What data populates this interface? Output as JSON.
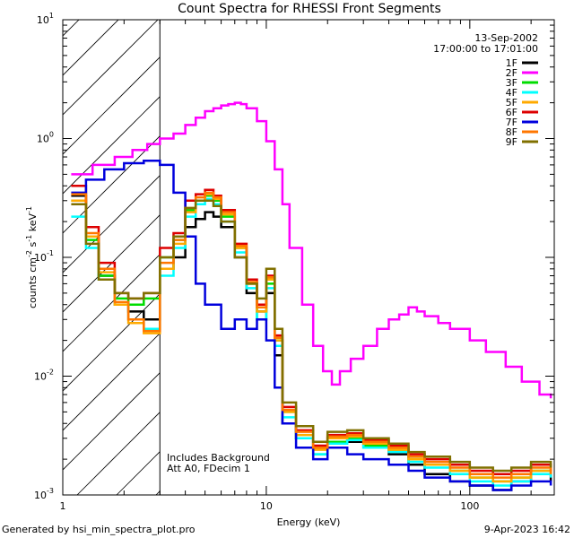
{
  "chart_data": {
    "type": "line",
    "title": "Count Spectra for RHESSI Front Segments",
    "xlabel": "Energy (keV)",
    "ylabel_parts": [
      "counts cm",
      "-2",
      " s",
      "-1",
      " keV",
      "-1"
    ],
    "xscale": "log",
    "yscale": "log",
    "xlim": [
      1,
      260
    ],
    "ylim": [
      0.001,
      10
    ],
    "x_ticks": [
      {
        "value": 1,
        "label": "1"
      },
      {
        "value": 10,
        "label": "10"
      },
      {
        "value": 100,
        "label": "100"
      }
    ],
    "y_ticks": [
      {
        "value": 0.001,
        "base": "10",
        "exp": "-3"
      },
      {
        "value": 0.01,
        "base": "10",
        "exp": "-2"
      },
      {
        "value": 0.1,
        "base": "10",
        "exp": "-1"
      },
      {
        "value": 1,
        "base": "10",
        "exp": "0"
      },
      {
        "value": 10,
        "base": "10",
        "exp": "1"
      }
    ],
    "hatched_region": {
      "x_from": 1,
      "x_to": 3
    },
    "date": "13-Sep-2002",
    "time_range": "17:00:00 to 17:01:00",
    "annotation_lines": [
      "Includes Background",
      "Att A0, FDecim 1"
    ],
    "series": [
      {
        "name": "1F",
        "color": "#000000",
        "x": [
          1.1,
          1.3,
          1.5,
          1.8,
          2.1,
          2.5,
          3.0,
          3.5,
          4.0,
          4.5,
          5.0,
          5.5,
          6.0,
          7.0,
          8.0,
          9.0,
          10.0,
          11.0,
          12.0,
          14.0,
          17.0,
          20.0,
          25.0,
          30.0,
          40.0,
          50.0,
          60.0,
          80.0,
          100.0,
          130.0,
          160.0,
          200.0,
          250.0
        ],
        "y": [
          0.33,
          0.15,
          0.07,
          0.04,
          0.035,
          0.03,
          0.08,
          0.1,
          0.18,
          0.21,
          0.24,
          0.22,
          0.18,
          0.1,
          0.05,
          0.035,
          0.05,
          0.015,
          0.004,
          0.003,
          0.0025,
          0.003,
          0.0028,
          0.0025,
          0.0022,
          0.0018,
          0.0015,
          0.0013,
          0.0012,
          0.0011,
          0.0013,
          0.0015,
          0.0013
        ]
      },
      {
        "name": "2F",
        "color": "#ff00ff",
        "x": [
          1.1,
          1.4,
          1.8,
          2.2,
          2.6,
          3.0,
          3.5,
          4.0,
          4.5,
          5.0,
          5.5,
          6.0,
          6.5,
          7.0,
          7.5,
          8.0,
          9.0,
          10.0,
          11.0,
          12.0,
          13.0,
          15.0,
          17.0,
          19.0,
          21.0,
          23.0,
          26.0,
          30.0,
          35.0,
          40.0,
          45.0,
          50.0,
          55.0,
          60.0,
          70.0,
          80.0,
          100.0,
          120.0,
          150.0,
          180.0,
          220.0,
          250.0
        ],
        "y": [
          0.5,
          0.6,
          0.7,
          0.8,
          0.9,
          1.0,
          1.1,
          1.3,
          1.5,
          1.7,
          1.8,
          1.9,
          1.95,
          2.0,
          1.95,
          1.8,
          1.4,
          0.95,
          0.55,
          0.28,
          0.12,
          0.04,
          0.018,
          0.011,
          0.0085,
          0.011,
          0.014,
          0.018,
          0.025,
          0.03,
          0.033,
          0.038,
          0.035,
          0.032,
          0.028,
          0.025,
          0.02,
          0.016,
          0.012,
          0.009,
          0.007,
          0.0065
        ]
      },
      {
        "name": "3F",
        "color": "#00dd00",
        "x": [
          1.1,
          1.3,
          1.5,
          1.8,
          2.1,
          2.5,
          3.0,
          3.5,
          4.0,
          4.5,
          5.0,
          5.5,
          6.0,
          7.0,
          8.0,
          9.0,
          10.0,
          11.0,
          12.0,
          14.0,
          17.0,
          20.0,
          25.0,
          30.0,
          40.0,
          50.0,
          60.0,
          80.0,
          100.0,
          130.0,
          160.0,
          200.0,
          250.0
        ],
        "y": [
          0.3,
          0.14,
          0.07,
          0.045,
          0.04,
          0.045,
          0.1,
          0.14,
          0.25,
          0.3,
          0.33,
          0.3,
          0.22,
          0.12,
          0.06,
          0.03,
          0.06,
          0.02,
          0.005,
          0.003,
          0.0022,
          0.0028,
          0.003,
          0.0026,
          0.0024,
          0.002,
          0.0018,
          0.0016,
          0.0014,
          0.0013,
          0.0014,
          0.0016,
          0.0015
        ]
      },
      {
        "name": "4F",
        "color": "#00ffff",
        "x": [
          1.1,
          1.3,
          1.5,
          1.8,
          2.1,
          2.5,
          3.0,
          3.5,
          4.0,
          4.5,
          5.0,
          5.5,
          6.0,
          7.0,
          8.0,
          9.0,
          10.0,
          11.0,
          12.0,
          14.0,
          17.0,
          20.0,
          25.0,
          30.0,
          40.0,
          50.0,
          60.0,
          80.0,
          100.0,
          130.0,
          160.0,
          200.0,
          250.0
        ],
        "y": [
          0.22,
          0.12,
          0.065,
          0.04,
          0.03,
          0.025,
          0.07,
          0.12,
          0.22,
          0.28,
          0.31,
          0.28,
          0.2,
          0.11,
          0.055,
          0.03,
          0.055,
          0.018,
          0.0045,
          0.003,
          0.0022,
          0.0027,
          0.0029,
          0.0025,
          0.0023,
          0.0019,
          0.0017,
          0.0015,
          0.0013,
          0.0012,
          0.0013,
          0.0015,
          0.0014
        ]
      },
      {
        "name": "5F",
        "color": "#ffaa00",
        "x": [
          1.1,
          1.3,
          1.5,
          1.8,
          2.1,
          2.5,
          3.0,
          3.5,
          4.0,
          4.5,
          5.0,
          5.5,
          6.0,
          7.0,
          8.0,
          9.0,
          10.0,
          11.0,
          12.0,
          14.0,
          17.0,
          20.0,
          25.0,
          30.0,
          40.0,
          50.0,
          60.0,
          80.0,
          100.0,
          130.0,
          160.0,
          200.0,
          250.0
        ],
        "y": [
          0.3,
          0.15,
          0.075,
          0.04,
          0.028,
          0.023,
          0.08,
          0.13,
          0.24,
          0.3,
          0.34,
          0.31,
          0.23,
          0.12,
          0.06,
          0.035,
          0.065,
          0.02,
          0.005,
          0.0032,
          0.0024,
          0.003,
          0.0031,
          0.0027,
          0.0024,
          0.002,
          0.0018,
          0.0016,
          0.0014,
          0.0013,
          0.0014,
          0.0016,
          0.0015
        ]
      },
      {
        "name": "6F",
        "color": "#dd0000",
        "x": [
          1.1,
          1.3,
          1.5,
          1.8,
          2.1,
          2.5,
          3.0,
          3.5,
          4.0,
          4.5,
          5.0,
          5.5,
          6.0,
          7.0,
          8.0,
          9.0,
          10.0,
          11.0,
          12.0,
          14.0,
          17.0,
          20.0,
          25.0,
          30.0,
          40.0,
          50.0,
          60.0,
          80.0,
          100.0,
          130.0,
          160.0,
          200.0,
          250.0
        ],
        "y": [
          0.4,
          0.18,
          0.09,
          0.05,
          0.045,
          0.05,
          0.12,
          0.16,
          0.3,
          0.34,
          0.37,
          0.33,
          0.25,
          0.13,
          0.065,
          0.04,
          0.07,
          0.022,
          0.0055,
          0.0035,
          0.0026,
          0.0032,
          0.0033,
          0.0029,
          0.0026,
          0.0022,
          0.002,
          0.0018,
          0.0016,
          0.0015,
          0.0016,
          0.0018,
          0.0016
        ]
      },
      {
        "name": "7F",
        "color": "#0000dd",
        "x": [
          1.1,
          1.3,
          1.6,
          2.0,
          2.5,
          3.0,
          3.5,
          4.0,
          4.5,
          5.0,
          6.0,
          7.0,
          8.0,
          9.0,
          10.0,
          11.0,
          12.0,
          14.0,
          17.0,
          20.0,
          25.0,
          30.0,
          40.0,
          50.0,
          60.0,
          80.0,
          100.0,
          130.0,
          160.0,
          200.0,
          250.0
        ],
        "y": [
          0.35,
          0.45,
          0.55,
          0.62,
          0.65,
          0.6,
          0.35,
          0.15,
          0.06,
          0.04,
          0.025,
          0.03,
          0.025,
          0.03,
          0.02,
          0.008,
          0.004,
          0.0025,
          0.002,
          0.0025,
          0.0022,
          0.002,
          0.0018,
          0.0016,
          0.0014,
          0.0013,
          0.0012,
          0.0011,
          0.0012,
          0.0013,
          0.0012
        ]
      },
      {
        "name": "8F",
        "color": "#ff7700",
        "x": [
          1.1,
          1.3,
          1.5,
          1.8,
          2.1,
          2.5,
          3.0,
          3.5,
          4.0,
          4.5,
          5.0,
          5.5,
          6.0,
          7.0,
          8.0,
          9.0,
          10.0,
          11.0,
          12.0,
          14.0,
          17.0,
          20.0,
          25.0,
          30.0,
          40.0,
          50.0,
          60.0,
          80.0,
          100.0,
          130.0,
          160.0,
          200.0,
          250.0
        ],
        "y": [
          0.34,
          0.16,
          0.08,
          0.042,
          0.03,
          0.024,
          0.09,
          0.14,
          0.26,
          0.32,
          0.35,
          0.32,
          0.24,
          0.125,
          0.062,
          0.038,
          0.068,
          0.021,
          0.0052,
          0.0034,
          0.0025,
          0.0031,
          0.0032,
          0.0028,
          0.0025,
          0.0021,
          0.0019,
          0.0017,
          0.0015,
          0.0014,
          0.0015,
          0.0017,
          0.0015
        ]
      },
      {
        "name": "9F",
        "color": "#807000",
        "x": [
          1.1,
          1.3,
          1.5,
          1.8,
          2.1,
          2.5,
          3.0,
          3.5,
          4.0,
          4.5,
          5.0,
          5.5,
          6.0,
          7.0,
          8.0,
          9.0,
          10.0,
          11.0,
          12.0,
          14.0,
          17.0,
          20.0,
          25.0,
          30.0,
          40.0,
          50.0,
          60.0,
          80.0,
          100.0,
          130.0,
          160.0,
          200.0,
          250.0
        ],
        "y": [
          0.28,
          0.13,
          0.065,
          0.05,
          0.045,
          0.05,
          0.1,
          0.15,
          0.26,
          0.3,
          0.3,
          0.27,
          0.2,
          0.1,
          0.06,
          0.045,
          0.08,
          0.025,
          0.006,
          0.0038,
          0.0028,
          0.0034,
          0.0035,
          0.003,
          0.0027,
          0.0023,
          0.0021,
          0.0019,
          0.0017,
          0.0016,
          0.0017,
          0.0019,
          0.0017
        ]
      }
    ]
  },
  "footer": {
    "generated_by": "Generated by hsi_min_spectra_plot.pro",
    "timestamp": "9-Apr-2023 16:42"
  }
}
